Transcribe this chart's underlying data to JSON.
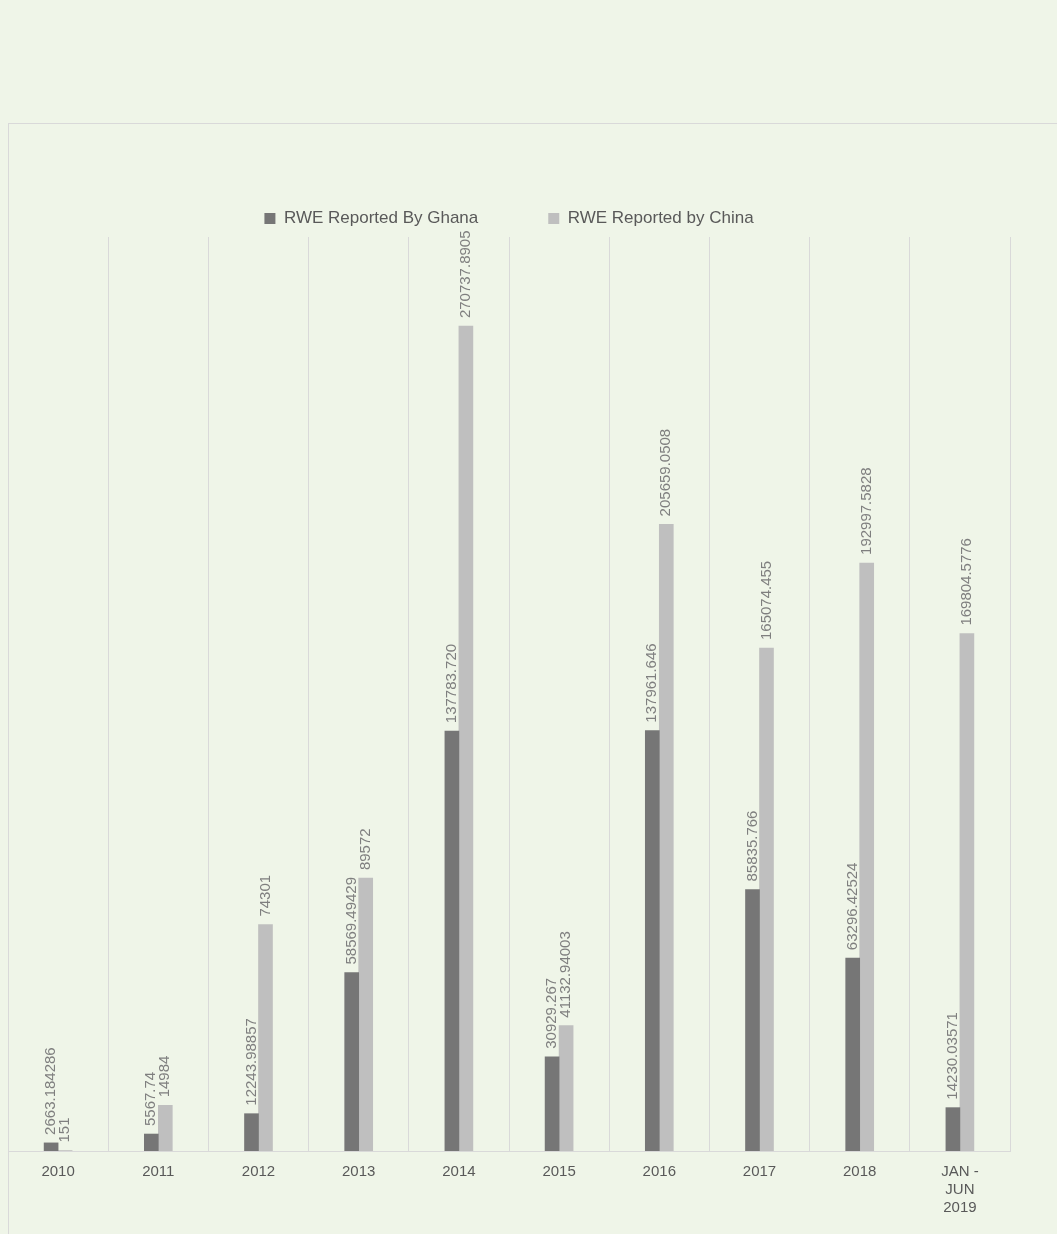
{
  "chart_data": {
    "type": "bar",
    "categories": [
      "2010",
      "2011",
      "2012",
      "2013",
      "2014",
      "2015",
      "2016",
      "2017",
      "2018",
      "JAN - JUN 2019"
    ],
    "series": [
      {
        "name": "RWE Reported By Ghana",
        "color": "#767676",
        "values": [
          2663.184286,
          5567.74,
          12243.98857,
          58569.49429,
          137783.72,
          30929.267,
          137961.646,
          85835.766,
          63296.42524,
          14230.03571
        ],
        "value_labels": [
          "2663.184286",
          "5567.74",
          "12243.98857",
          "58569.49429",
          "137783.720",
          "30929.267",
          "137961.646",
          "85835.766",
          "63296.42524",
          "14230.03571"
        ]
      },
      {
        "name": "RWE Reported by China",
        "color": "#bfbfbf",
        "values": [
          151,
          14984,
          74301,
          89572,
          270737.8905,
          41132.94003,
          205659.0508,
          165074.455,
          192997.5828,
          169804.5776
        ],
        "value_labels": [
          "151",
          "14984",
          "74301",
          "89572",
          "270737.8905",
          "41132.94003",
          "205659.0508",
          "165074.455",
          "192997.5828",
          "169804.5776"
        ]
      }
    ],
    "legend": "top",
    "grid": "x"
  }
}
